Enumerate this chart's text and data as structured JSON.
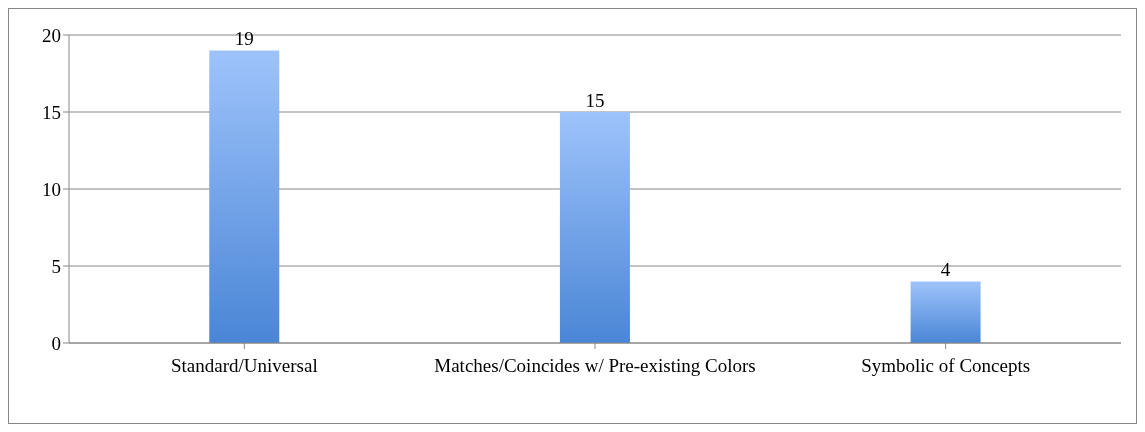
{
  "chart_data": {
    "type": "bar",
    "categories": [
      "Standard/Universal",
      "Matches/Coincides w/ Pre-existing Colors",
      "Symbolic of Concepts"
    ],
    "values": [
      19,
      15,
      4
    ],
    "color": "#4a86d6",
    "ylim": [
      0,
      20
    ],
    "yticks": [
      0,
      5,
      10,
      15,
      20
    ],
    "grid": "y",
    "data_labels": true
  }
}
